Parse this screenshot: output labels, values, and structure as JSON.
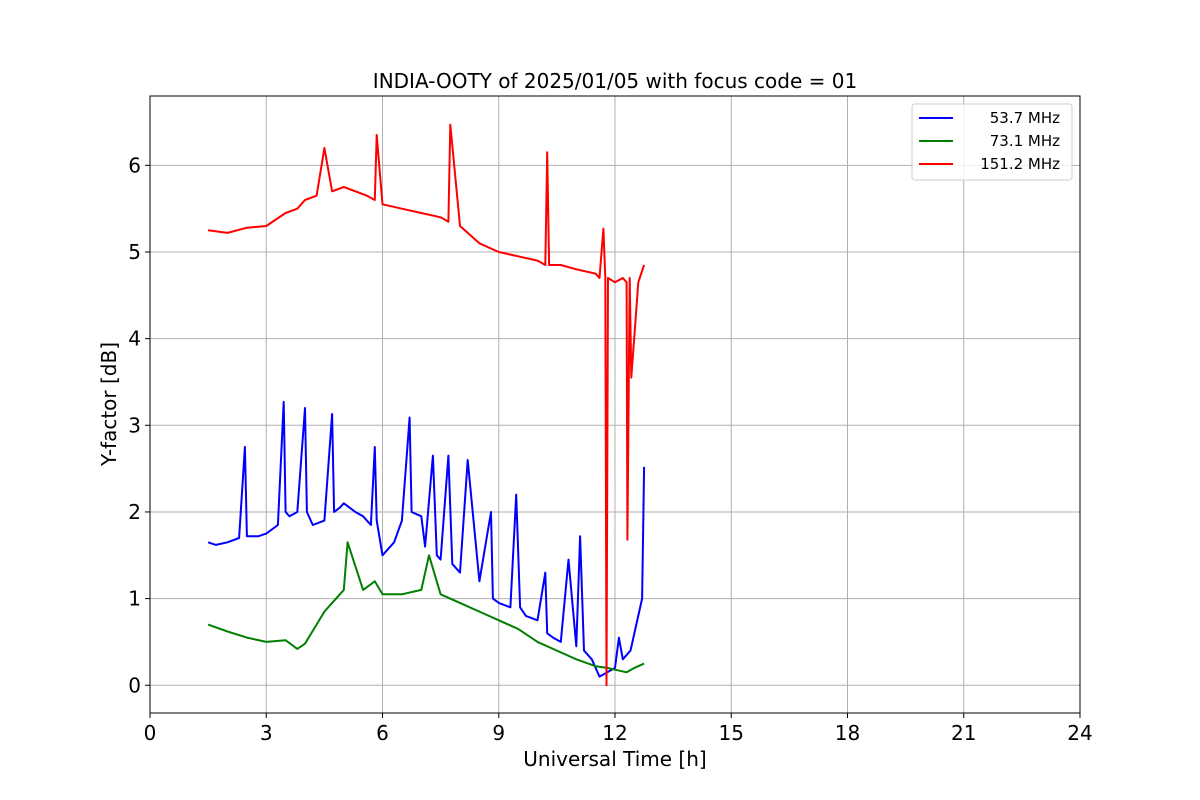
{
  "chart_data": {
    "type": "line",
    "title": "INDIA-OOTY of 2025/01/05 with focus code = 01",
    "xlabel": "Universal Time [h]",
    "ylabel": "Y-factor [dB]",
    "xlim": [
      0,
      24
    ],
    "ylim": [
      -0.32,
      6.8
    ],
    "xticks": [
      "0",
      "3",
      "6",
      "9",
      "12",
      "15",
      "18",
      "21",
      "24"
    ],
    "yticks": [
      "0",
      "1",
      "2",
      "3",
      "4",
      "5",
      "6"
    ],
    "grid": true,
    "legend_position": "top-right",
    "series": [
      {
        "name": "53.7 MHz",
        "color": "#0000ff",
        "x": [
          1.5,
          1.7,
          2.0,
          2.3,
          2.45,
          2.5,
          2.8,
          3.0,
          3.3,
          3.45,
          3.5,
          3.6,
          3.8,
          4.0,
          4.05,
          4.2,
          4.5,
          4.7,
          4.75,
          4.9,
          5.0,
          5.3,
          5.5,
          5.7,
          5.8,
          5.85,
          6.0,
          6.3,
          6.5,
          6.7,
          6.75,
          7.0,
          7.1,
          7.3,
          7.4,
          7.5,
          7.7,
          7.8,
          8.0,
          8.2,
          8.5,
          8.8,
          8.85,
          9.0,
          9.3,
          9.45,
          9.55,
          9.7,
          10.0,
          10.2,
          10.25,
          10.4,
          10.6,
          10.8,
          11.0,
          11.1,
          11.2,
          11.4,
          11.6,
          11.8,
          12.0,
          12.1,
          12.2,
          12.4,
          12.55,
          12.7,
          12.75
        ],
        "y": [
          1.65,
          1.62,
          1.65,
          1.7,
          2.75,
          1.72,
          1.72,
          1.75,
          1.85,
          3.27,
          2.0,
          1.95,
          2.0,
          3.2,
          2.0,
          1.85,
          1.9,
          3.13,
          2.0,
          2.05,
          2.1,
          2.0,
          1.95,
          1.85,
          2.75,
          1.9,
          1.5,
          1.65,
          1.9,
          3.09,
          2.0,
          1.95,
          1.6,
          2.65,
          1.5,
          1.45,
          2.65,
          1.4,
          1.3,
          2.6,
          1.2,
          2.0,
          1.0,
          0.95,
          0.9,
          2.2,
          0.9,
          0.8,
          0.75,
          1.3,
          0.6,
          0.55,
          0.5,
          1.45,
          0.45,
          1.72,
          0.4,
          0.3,
          0.1,
          0.15,
          0.2,
          0.55,
          0.3,
          0.4,
          0.7,
          1.0,
          2.52
        ]
      },
      {
        "name": "73.1 MHz",
        "color": "#008000",
        "x": [
          1.5,
          2.0,
          2.5,
          3.0,
          3.5,
          3.8,
          4.0,
          4.5,
          5.0,
          5.1,
          5.5,
          5.8,
          6.0,
          6.5,
          7.0,
          7.2,
          7.5,
          8.0,
          8.5,
          9.0,
          9.5,
          10.0,
          10.5,
          11.0,
          11.5,
          11.8,
          12.0,
          12.3,
          12.5,
          12.75
        ],
        "y": [
          0.7,
          0.62,
          0.55,
          0.5,
          0.52,
          0.42,
          0.48,
          0.85,
          1.1,
          1.65,
          1.1,
          1.2,
          1.05,
          1.05,
          1.1,
          1.5,
          1.05,
          0.95,
          0.85,
          0.75,
          0.65,
          0.5,
          0.4,
          0.3,
          0.22,
          0.2,
          0.18,
          0.15,
          0.2,
          0.25
        ]
      },
      {
        "name": "151.2 MHz",
        "color": "#ff0000",
        "x": [
          1.5,
          2.0,
          2.5,
          3.0,
          3.5,
          3.8,
          4.0,
          4.3,
          4.5,
          4.7,
          5.0,
          5.3,
          5.6,
          5.8,
          5.85,
          6.0,
          6.5,
          7.0,
          7.5,
          7.7,
          7.75,
          8.0,
          8.5,
          9.0,
          9.5,
          10.0,
          10.2,
          10.25,
          10.3,
          10.6,
          11.0,
          11.5,
          11.6,
          11.7,
          11.75,
          11.78,
          11.82,
          12.0,
          12.2,
          12.3,
          12.32,
          12.38,
          12.42,
          12.6,
          12.75
        ],
        "y": [
          5.25,
          5.22,
          5.28,
          5.3,
          5.45,
          5.5,
          5.6,
          5.65,
          6.2,
          5.7,
          5.75,
          5.7,
          5.65,
          5.6,
          6.35,
          5.55,
          5.5,
          5.45,
          5.4,
          5.35,
          6.47,
          5.3,
          5.1,
          5.0,
          4.95,
          4.9,
          4.85,
          6.15,
          4.85,
          4.85,
          4.8,
          4.75,
          4.7,
          5.27,
          4.7,
          0.0,
          4.7,
          4.65,
          4.7,
          4.65,
          1.68,
          4.7,
          3.55,
          4.65,
          4.85
        ]
      }
    ]
  }
}
